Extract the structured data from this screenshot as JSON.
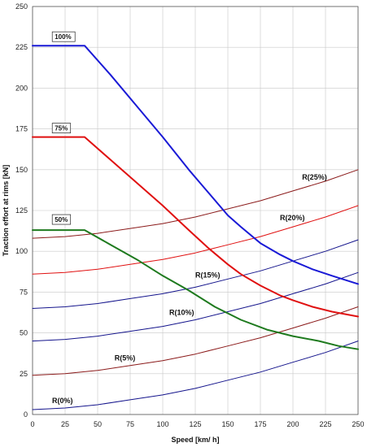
{
  "chart_data": {
    "type": "line",
    "title": "",
    "xlabel": "Speed  [km/ h]",
    "ylabel": "Traction effort at rims  [kN]",
    "xlim": [
      0,
      250
    ],
    "ylim": [
      0,
      250
    ],
    "xticks": [
      0,
      25,
      50,
      75,
      100,
      125,
      150,
      175,
      200,
      225,
      250
    ],
    "yticks": [
      0,
      25,
      50,
      75,
      100,
      125,
      150,
      175,
      200,
      225,
      250
    ],
    "grid": true,
    "effort_curves": [
      {
        "name": "100%",
        "color": "#1a1ad6",
        "x": [
          0,
          40,
          60,
          80,
          100,
          120,
          135,
          150,
          160,
          175,
          190,
          200,
          215,
          230,
          250
        ],
        "y": [
          226,
          226,
          208,
          189,
          170,
          150,
          136,
          122,
          115,
          105,
          98,
          94,
          89,
          85,
          80
        ]
      },
      {
        "name": "75%",
        "color": "#e01010",
        "x": [
          0,
          40,
          60,
          80,
          100,
          120,
          135,
          150,
          160,
          175,
          190,
          200,
          215,
          230,
          250
        ],
        "y": [
          170,
          170,
          156,
          142,
          128,
          113,
          102,
          92,
          86,
          79,
          73,
          70,
          66,
          63,
          60
        ]
      },
      {
        "name": "50%",
        "color": "#1e7a1e",
        "x": [
          0,
          40,
          60,
          80,
          100,
          120,
          140,
          160,
          180,
          200,
          220,
          235,
          250
        ],
        "y": [
          113,
          113,
          104,
          95,
          85,
          76,
          66,
          58,
          52,
          48,
          45,
          42,
          40
        ]
      }
    ],
    "resistance_curves": [
      {
        "name": "R(0%)",
        "color": "#14148c",
        "x": [
          0,
          25,
          50,
          75,
          100,
          125,
          150,
          175,
          200,
          225,
          250
        ],
        "y": [
          3,
          4,
          6,
          9,
          12,
          16,
          21,
          26,
          32,
          38,
          45
        ]
      },
      {
        "name": "R(5%)",
        "color": "#8b1a1a",
        "x": [
          0,
          25,
          50,
          75,
          100,
          125,
          150,
          175,
          200,
          225,
          250
        ],
        "y": [
          24,
          25,
          27,
          30,
          33,
          37,
          42,
          47,
          53,
          59,
          66
        ]
      },
      {
        "name": "R(10%)",
        "color": "#14148c",
        "x": [
          0,
          25,
          50,
          75,
          100,
          125,
          150,
          175,
          200,
          225,
          250
        ],
        "y": [
          45,
          46,
          48,
          51,
          54,
          58,
          63,
          68,
          74,
          80,
          87
        ]
      },
      {
        "name": "R(15%)",
        "color": "#14148c",
        "x": [
          0,
          25,
          50,
          75,
          100,
          125,
          150,
          175,
          200,
          225,
          250
        ],
        "y": [
          65,
          66,
          68,
          71,
          74,
          78,
          83,
          88,
          94,
          100,
          107
        ]
      },
      {
        "name": "R(20%)",
        "color": "#e01010",
        "x": [
          0,
          25,
          50,
          75,
          100,
          125,
          150,
          175,
          200,
          225,
          250
        ],
        "y": [
          86,
          87,
          89,
          92,
          95,
          99,
          104,
          109,
          115,
          121,
          128
        ]
      },
      {
        "name": "R(25%)",
        "color": "#8b1a1a",
        "x": [
          0,
          25,
          50,
          75,
          100,
          125,
          150,
          175,
          200,
          225,
          250
        ],
        "y": [
          108,
          109,
          111,
          114,
          117,
          121,
          126,
          131,
          137,
          143,
          150
        ]
      }
    ],
    "curve_labels": [
      {
        "text": "100%",
        "x": 17,
        "y": 230,
        "boxed": true
      },
      {
        "text": "75%",
        "x": 17,
        "y": 174,
        "boxed": true
      },
      {
        "text": "50%",
        "x": 17,
        "y": 118,
        "boxed": true
      },
      {
        "text": "R(25%)",
        "x": 207,
        "y": 144,
        "boxed": false
      },
      {
        "text": "R(20%)",
        "x": 190,
        "y": 119,
        "boxed": false
      },
      {
        "text": "R(15%)",
        "x": 125,
        "y": 84,
        "boxed": false
      },
      {
        "text": "R(10%)",
        "x": 105,
        "y": 61,
        "boxed": false
      },
      {
        "text": "R(5%)",
        "x": 63,
        "y": 33,
        "boxed": false
      },
      {
        "text": "R(0%)",
        "x": 15,
        "y": 7,
        "boxed": false
      }
    ]
  }
}
